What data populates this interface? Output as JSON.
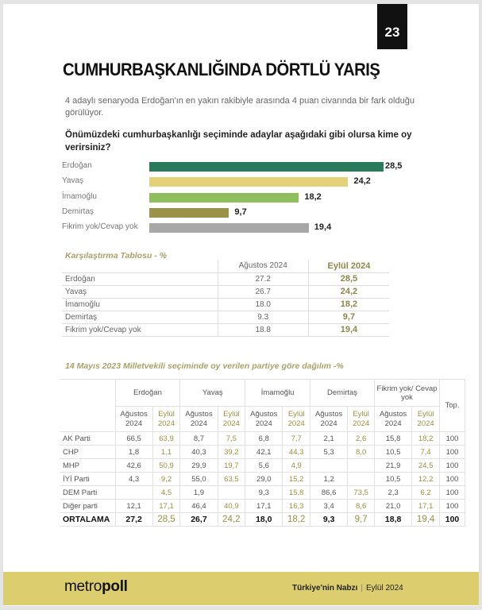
{
  "page_number": "23",
  "title": "CUMHURBAŞKANLIĞINDA DÖRTLÜ YARIŞ",
  "subtitle": "4 adaylı senaryoda Erdoğan'ın en yakın rakibiyle arasında 4 puan civarında bir fark olduğu görülüyor.",
  "question": "Önümüzdeki cumhurbaşkanlığı seçiminde adaylar aşağıdaki gibi olursa kime oy verirsiniz?",
  "chart_data": {
    "type": "bar",
    "orientation": "horizontal",
    "categories": [
      "Erdoğan",
      "Yavaş",
      "İmamoğlu",
      "Demirtaş",
      "Fikrim yok/Cevap yok"
    ],
    "values": [
      28.5,
      24.2,
      18.2,
      9.7,
      19.4
    ],
    "value_labels": [
      "28,5",
      "24,2",
      "18,2",
      "9,7",
      "19,4"
    ],
    "colors": [
      "#2b7a5c",
      "#e3d27a",
      "#8fbf5c",
      "#9c9148",
      "#a8a8a8"
    ]
  },
  "comparison": {
    "title": "Karşılaştırma Tablosu - %",
    "headers": [
      "",
      "Ağustos 2024",
      "Eylül 2024"
    ],
    "rows": [
      [
        "Erdoğan",
        "27.2",
        "28,5"
      ],
      [
        "Yavaş",
        "26.7",
        "24,2"
      ],
      [
        "İmamoğlu",
        "18.0",
        "18,2"
      ],
      [
        "Demirtaş",
        "9.3",
        "9,7"
      ],
      [
        "Fikrim yok/Cevap yok",
        "18.8",
        "19,4"
      ]
    ]
  },
  "party_table": {
    "title": "14 Mayıs 2023 Milletvekili seçiminde oy verilen partiye göre dağılım -%",
    "groups": [
      "Erdoğan",
      "Yavaş",
      "İmamoğlu",
      "Demirtaş",
      "Fikrim yok/ Cevap yok"
    ],
    "sub_a": "Ağustos 2024",
    "sub_b": "Eylül 2024",
    "total": "Top.",
    "rows": [
      [
        "AK Parti",
        "66,5",
        "63,9",
        "8,7",
        "7,5",
        "6,8",
        "7,7",
        "2,1",
        "2,6",
        "15,8",
        "18,2",
        "100"
      ],
      [
        "CHP",
        "1,8",
        "1,1",
        "40,3",
        "39,2",
        "42,1",
        "44,3",
        "5,3",
        "8,0",
        "10,5",
        "7,4",
        "100"
      ],
      [
        "MHP",
        "42,6",
        "50,9",
        "29,9",
        "19,7",
        "5,6",
        "4,9",
        "",
        "",
        "21,9",
        "24,5",
        "100"
      ],
      [
        "İYİ Parti",
        "4,3",
        "9,2",
        "55,0",
        "63,5",
        "29,0",
        "15,2",
        "1,2",
        "",
        "10,5",
        "12,2",
        "100"
      ],
      [
        "DEM Parti",
        "",
        "4,5",
        "1,9",
        "",
        "9,3",
        "15,8",
        "86,6",
        "73,5",
        "2,3",
        "6,2",
        "100"
      ],
      [
        "Diğer parti",
        "12,1",
        "17,1",
        "46,4",
        "40,9",
        "17,1",
        "16,3",
        "3,4",
        "8,6",
        "21,0",
        "17,1",
        "100"
      ],
      [
        "ORTALAMA",
        "27,2",
        "28,5",
        "26,7",
        "24,2",
        "18,0",
        "18,2",
        "9,3",
        "9,7",
        "18,8",
        "19,4",
        "100"
      ]
    ]
  },
  "footer": {
    "logo": "metropoll",
    "publication": "Türkiye'nin Nabzı",
    "date": "Eylül 2024",
    "color": "#dccd6e"
  }
}
